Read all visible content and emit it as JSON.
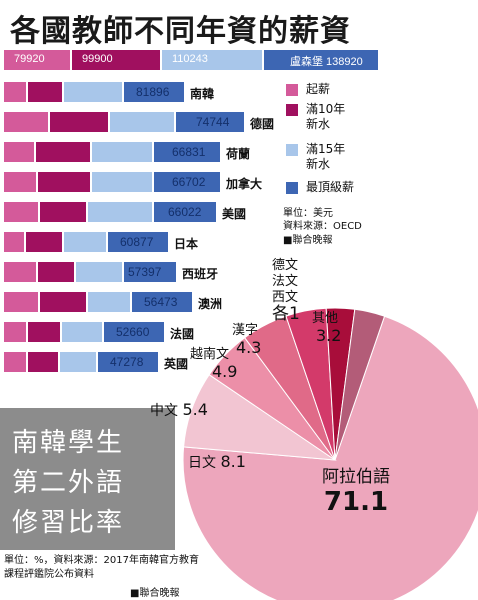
{
  "chart_data": [
    {
      "type": "bar",
      "title": "各國教師不同年資的薪資",
      "header_values": [
        "79920",
        "99900",
        "110243",
        "盧森堡 138920"
      ],
      "categories": [
        "南韓",
        "德國",
        "荷蘭",
        "加拿大",
        "美國",
        "日本",
        "西班牙",
        "澳洲",
        "法國",
        "英國"
      ],
      "top_values": [
        "81896",
        "74744",
        "66831",
        "66702",
        "66022",
        "60877",
        "57397",
        "56473",
        "52660",
        "47278"
      ],
      "series": [
        {
          "name": "起薪",
          "color": "#d45a9a"
        },
        {
          "name": "滿10年 新水",
          "color": "#a0105f"
        },
        {
          "name": "滿15年 新水",
          "color": "#a8c6ea"
        },
        {
          "name": "最頂級薪",
          "color": "#3d66b3"
        }
      ],
      "unit_note": "單位：美元",
      "source_note": "資料來源：OECD",
      "credit": "■聯合晚報"
    },
    {
      "type": "pie",
      "title": [
        "南韓學生",
        "第二外語",
        "修習比率"
      ],
      "slices": [
        {
          "label": "阿拉伯語",
          "value": "71.1"
        },
        {
          "label": "日文",
          "value": "8.1"
        },
        {
          "label": "中文",
          "value": "5.4"
        },
        {
          "label": "越南文",
          "value": "4.9"
        },
        {
          "label": "漢字",
          "value": "4.3"
        },
        {
          "label": "德文 法文 西文",
          "value": "各1"
        },
        {
          "label": "其他",
          "value": "3.2"
        }
      ],
      "colors": [
        "#eda6bc",
        "#f2c5d2",
        "#ec8fa8",
        "#e06a88",
        "#d33a6a",
        "#a80d3a",
        "#b35c78"
      ],
      "source_note": "單位：%，資料來源：2017年南韓官方教育課程評鑑院公布資料",
      "credit": "■聯合晚報"
    }
  ]
}
